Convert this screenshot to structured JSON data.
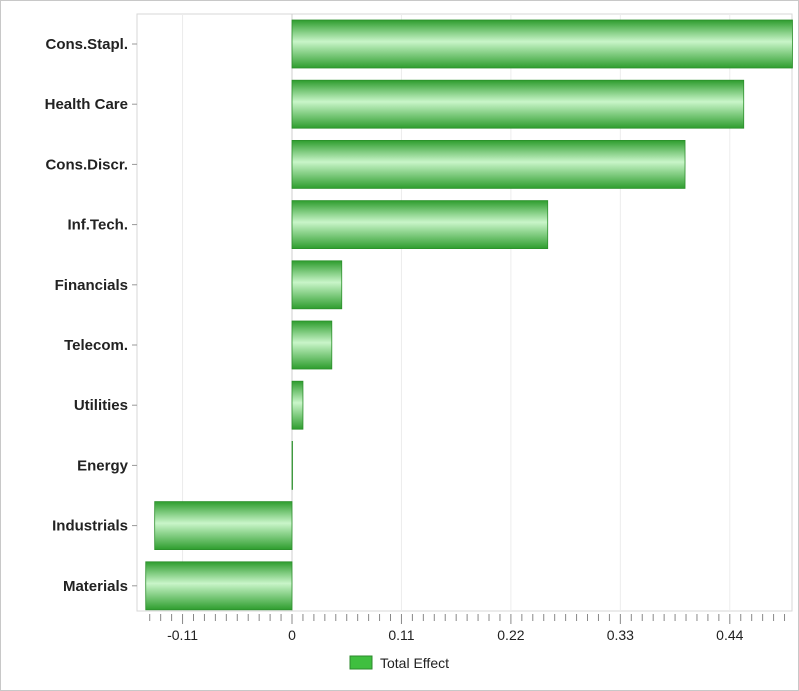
{
  "chart_data": {
    "type": "bar",
    "orientation": "horizontal",
    "categories": [
      "Cons.Stapl.",
      "Health Care",
      "Cons.Discr.",
      "Inf.Tech.",
      "Financials",
      "Telecom.",
      "Utilities",
      "Energy",
      "Industrials",
      "Materials"
    ],
    "series": [
      {
        "name": "Total Effect",
        "color": "#3fbf3f",
        "values": [
          0.503,
          0.454,
          0.395,
          0.257,
          0.05,
          0.04,
          0.011,
          0.0,
          -0.138,
          -0.147
        ]
      }
    ],
    "xlim": [
      -0.155,
      0.51
    ],
    "x_ticks": [
      -0.11,
      0,
      0.11,
      0.22,
      0.33,
      0.44
    ],
    "x_tick_labels": [
      "-0.11",
      "0",
      "0.11",
      "0.22",
      "0.33",
      "0.44"
    ],
    "grid": "vertical",
    "legend_position": "bottom"
  }
}
